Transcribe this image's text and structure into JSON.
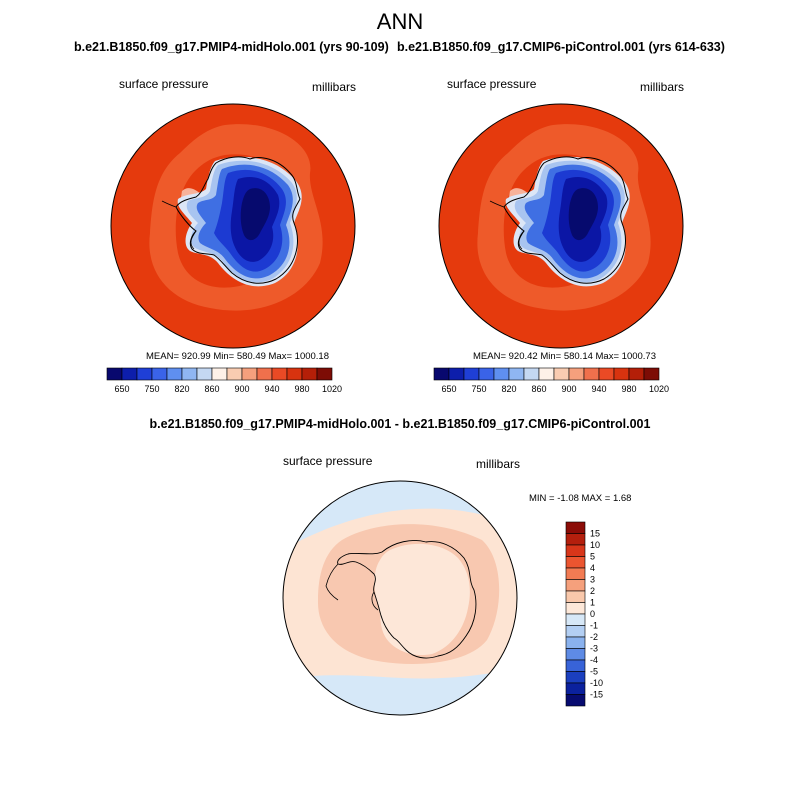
{
  "figure_title": "ANN",
  "panels": [
    {
      "title": "b.e21.B1850.f09_g17.PMIP4-midHolo.001 (yrs 90-109)",
      "variable": "surface pressure",
      "units": "millibars",
      "stats": "MEAN= 920.99  Min= 580.49  Max= 1000.18"
    },
    {
      "title": "b.e21.B1850.f09_g17.CMIP6-piControl.001 (yrs 614-633)",
      "variable": "surface pressure",
      "units": "millibars",
      "stats": "MEAN= 920.42  Min= 580.14  Max= 1000.73"
    }
  ],
  "abs_colorbar": {
    "colors": [
      "#08086e",
      "#0d1eab",
      "#1f3fd6",
      "#3a63e8",
      "#5f8ff0",
      "#8fb6f2",
      "#c4d8f2",
      "#fdf1e8",
      "#f9ccb1",
      "#f5a07d",
      "#f0704c",
      "#ea4a25",
      "#d8330f",
      "#b41f08",
      "#7d0c05"
    ],
    "labels": [
      "650",
      "750",
      "820",
      "860",
      "900",
      "940",
      "980",
      "1020"
    ]
  },
  "diff_panel": {
    "title": "b.e21.B1850.f09_g17.PMIP4-midHolo.001 - b.e21.B1850.f09_g17.CMIP6-piControl.001",
    "variable": "surface pressure",
    "units": "millibars",
    "stats": "MIN =  -1.08 MAX =   1.68"
  },
  "diff_colorbar": {
    "colors": [
      "#8b0c07",
      "#b41f0d",
      "#d8361a",
      "#eb5530",
      "#f27b53",
      "#f5a07c",
      "#f9c8ab",
      "#fde8d9",
      "#d7e8f7",
      "#b3cff3",
      "#8ab2ee",
      "#5e8be5",
      "#3863d8",
      "#1b3fbf",
      "#0b219e",
      "#070b70"
    ],
    "labels": [
      "15",
      "10",
      "5",
      "4",
      "3",
      "2",
      "1",
      "0",
      "-1",
      "-2",
      "-3",
      "-4",
      "-5",
      "-10",
      "-15"
    ]
  },
  "map_colors": {
    "ocean_abs": "#e53a0d",
    "ocean_abs_ring": "#ee5a2a",
    "ice_shelf": "#f7b29a",
    "ice_edge": "#dce6f6",
    "ice_1": "#a8c4f0",
    "ice_2": "#3f6fe3",
    "ice_3": "#1c3ad2",
    "ice_4": "#0b16a5",
    "ice_5": "#060a6e",
    "diff_bg": "#fde4d3",
    "diff_ring": "#f8c8b0",
    "diff_inner": "#fde7d8",
    "diff_blue": "#d6e8f8"
  }
}
